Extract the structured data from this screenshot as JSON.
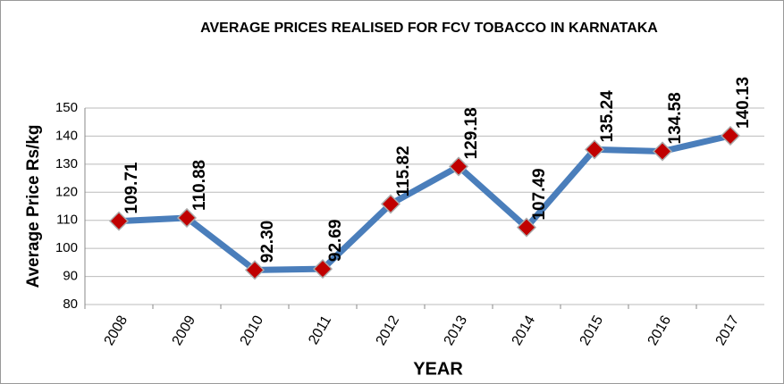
{
  "chart_data": {
    "type": "line",
    "title": "AVERAGE PRICES REALISED FOR FCV TOBACCO IN  KARNATAKA",
    "x_label": "YEAR",
    "y_label": "Average Price Rs/kg",
    "categories": [
      "2008",
      "2009",
      "2010",
      "2011",
      "2012",
      "2013",
      "2014",
      "2015",
      "2016",
      "2017"
    ],
    "series": [
      {
        "name": "Average Price",
        "color": "#4a7ebb",
        "marker_color": "#c00000",
        "values": [
          109.71,
          110.88,
          92.3,
          92.69,
          115.82,
          129.18,
          107.49,
          135.24,
          134.58,
          140.13
        ],
        "value_labels": [
          "109.71",
          "110.88",
          "92.30",
          "92.69",
          "115.82",
          "129.18",
          "107.49",
          "135.24",
          "134.58",
          "140.13"
        ]
      }
    ],
    "ylim": [
      80,
      150
    ],
    "yticks": [
      80,
      90,
      100,
      110,
      120,
      130,
      140,
      150
    ],
    "grid": true
  }
}
